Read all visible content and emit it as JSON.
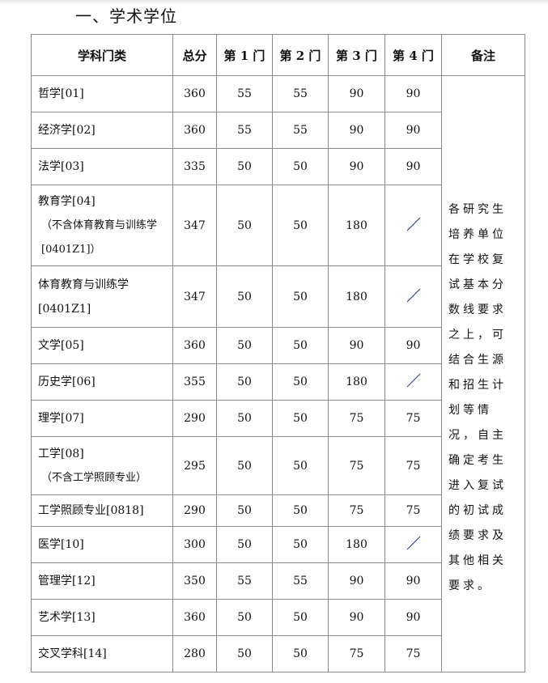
{
  "section_title": "一、学术学位",
  "table": {
    "headers": [
      "学科门类",
      "总分",
      "第 1 门",
      "第 2 门",
      "第 3 门",
      "第 4 门",
      "备注"
    ],
    "remark": "各研究生培养单位在学校复试基本分数线要求之上，可结合生源和招生计划等情况，自主确定考生进入复试的初试成绩要求及其他相关要求。",
    "rows": [
      {
        "subject": "哲学[01]",
        "note": "",
        "total": "360",
        "c1": "55",
        "c2": "55",
        "c3": "90",
        "c4": "90"
      },
      {
        "subject": "经济学[02]",
        "note": "",
        "total": "360",
        "c1": "55",
        "c2": "55",
        "c3": "90",
        "c4": "90"
      },
      {
        "subject": "法学[03]",
        "note": "",
        "total": "335",
        "c1": "50",
        "c2": "50",
        "c3": "90",
        "c4": "90"
      },
      {
        "subject": "教育学[04]",
        "note": "（不含体育教育与训练学[0401Z1]）",
        "total": "347",
        "c1": "50",
        "c2": "50",
        "c3": "180",
        "c4": "/"
      },
      {
        "subject": "体育教育与训练学[0401Z1]",
        "note": "",
        "total": "347",
        "c1": "50",
        "c2": "50",
        "c3": "180",
        "c4": "/"
      },
      {
        "subject": "文学[05]",
        "note": "",
        "total": "360",
        "c1": "50",
        "c2": "50",
        "c3": "90",
        "c4": "90"
      },
      {
        "subject": "历史学[06]",
        "note": "",
        "total": "355",
        "c1": "50",
        "c2": "50",
        "c3": "180",
        "c4": "/"
      },
      {
        "subject": "理学[07]",
        "note": "",
        "total": "290",
        "c1": "50",
        "c2": "50",
        "c3": "75",
        "c4": "75"
      },
      {
        "subject": "工学[08]",
        "note": "（不含工学照顾专业）",
        "total": "295",
        "c1": "50",
        "c2": "50",
        "c3": "75",
        "c4": "75"
      },
      {
        "subject": "工学照顾专业[0818]",
        "note": "",
        "total": "290",
        "c1": "50",
        "c2": "50",
        "c3": "75",
        "c4": "75"
      },
      {
        "subject": "医学[10]",
        "note": "",
        "total": "300",
        "c1": "50",
        "c2": "50",
        "c3": "180",
        "c4": "/"
      },
      {
        "subject": "管理学[12]",
        "note": "",
        "total": "350",
        "c1": "55",
        "c2": "55",
        "c3": "90",
        "c4": "90"
      },
      {
        "subject": "艺术学[13]",
        "note": "",
        "total": "360",
        "c1": "50",
        "c2": "50",
        "c3": "90",
        "c4": "90"
      },
      {
        "subject": "交叉学科[14]",
        "note": "",
        "total": "280",
        "c1": "50",
        "c2": "50",
        "c3": "75",
        "c4": "75"
      }
    ]
  }
}
